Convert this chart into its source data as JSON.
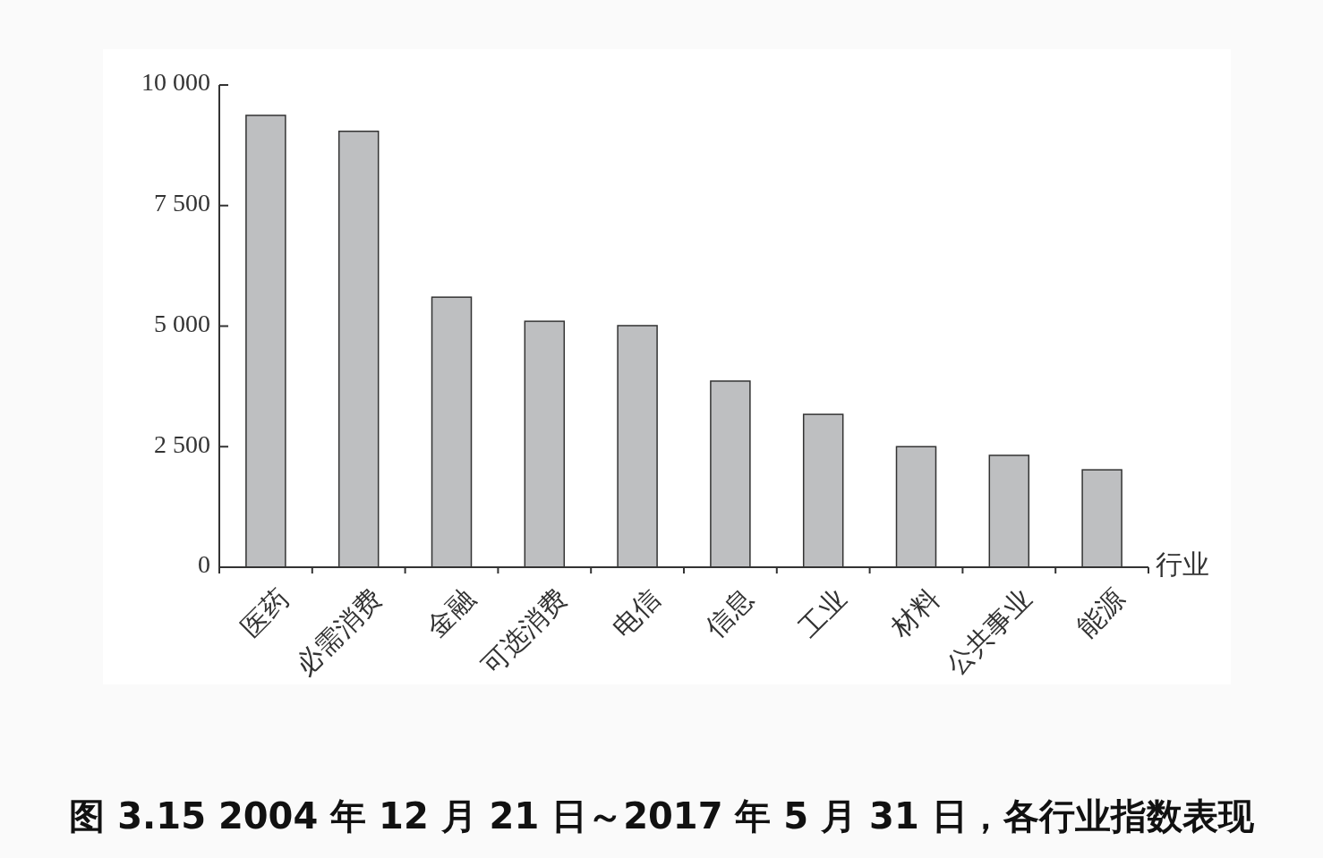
{
  "chart_data": {
    "type": "bar",
    "title": "图 3.15 2004 年 12 月 21 日～2017 年 5 月 31 日，各行业指数表现",
    "xlabel": "行业",
    "categories": [
      "医药",
      "必需消费",
      "金融",
      "可选消费",
      "电信",
      "信息",
      "工业",
      "材料",
      "公共事业",
      "能源"
    ],
    "values": [
      9370,
      9040,
      5600,
      5100,
      5010,
      3860,
      3170,
      2500,
      2320,
      2020
    ],
    "color": "#bebfc1",
    "ylim": [
      0,
      10000
    ],
    "yticks": [
      0,
      {
        "value": 2500,
        "label": "2 500"
      },
      {
        "value": 5000,
        "label": "5 000"
      },
      {
        "value": 7500,
        "label": "7 500"
      },
      {
        "value": 10000,
        "label": "10 000"
      }
    ]
  }
}
